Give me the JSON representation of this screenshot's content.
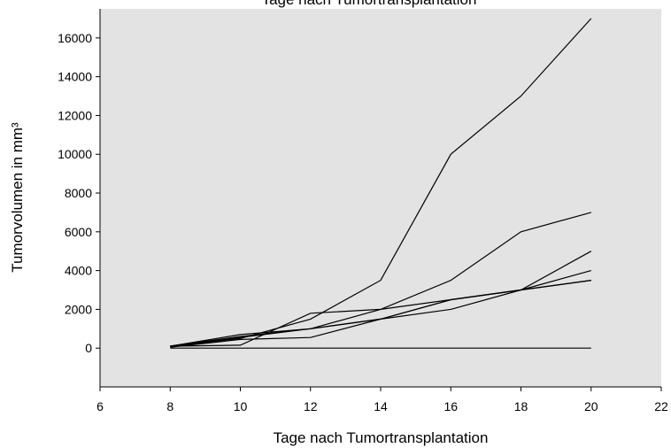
{
  "chart_data": {
    "type": "line",
    "title": "Tage nach Tumortransplantation",
    "xlabel": "Tage nach Tumortransplantation",
    "ylabel": "Tumorvolumen in mm³",
    "xlim": [
      6,
      22
    ],
    "ylim": [
      -2000,
      17500
    ],
    "xticks": [
      6,
      8,
      10,
      12,
      14,
      16,
      18,
      20,
      22
    ],
    "yticks": [
      0,
      2000,
      4000,
      6000,
      8000,
      10000,
      12000,
      14000,
      16000
    ],
    "grid": false,
    "legend": "none",
    "plot_background": "#e3e3e3",
    "line_color": "#000000",
    "x": [
      8,
      10,
      12,
      14,
      16,
      18,
      20
    ],
    "series": [
      {
        "values": [
          100,
          500,
          1500,
          3500,
          10000,
          13000,
          17000
        ]
      },
      {
        "values": [
          100,
          700,
          1000,
          2000,
          3500,
          6000,
          7000
        ]
      },
      {
        "values": [
          100,
          150,
          1800,
          2000,
          2500,
          3000,
          5000
        ]
      },
      {
        "values": [
          50,
          450,
          550,
          1500,
          2000,
          3000,
          4000
        ]
      },
      {
        "values": [
          100,
          600,
          1000,
          1500,
          2500,
          3000,
          3500
        ]
      },
      {
        "values": [
          100,
          550,
          1000,
          1500,
          2500,
          3000,
          3500
        ]
      },
      {
        "values": [
          0,
          0,
          0,
          0,
          0,
          0,
          0
        ]
      }
    ]
  }
}
